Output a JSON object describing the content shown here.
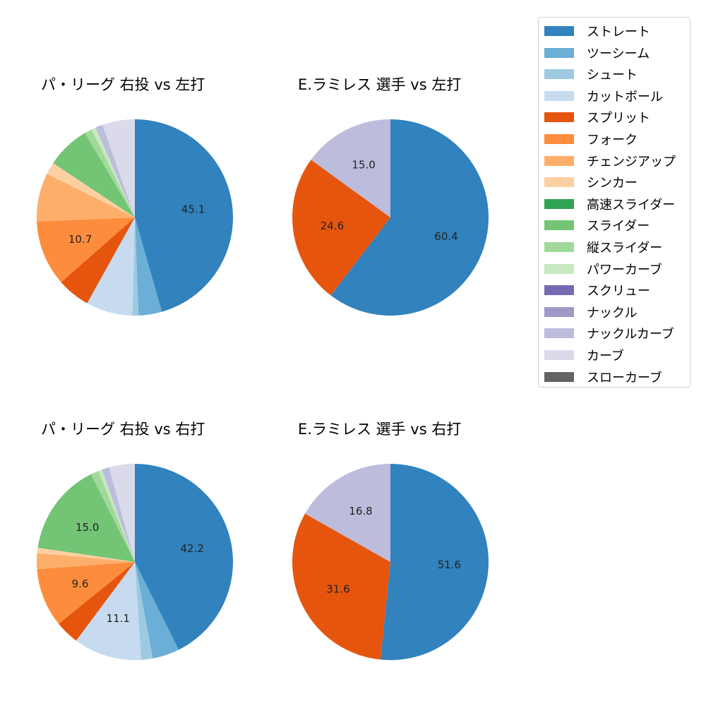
{
  "chart_data": [
    {
      "type": "pie",
      "title": "パ・リーグ 右投 vs 左打",
      "start_angle": 90,
      "direction": "clockwise",
      "slices": [
        {
          "label": "ストレート",
          "value": 45.1,
          "color": "#3182bd",
          "show_label": true
        },
        {
          "label": "ツーシーム",
          "value": 3.8,
          "color": "#6baed6",
          "show_label": false
        },
        {
          "label": "シュート",
          "value": 1.0,
          "color": "#9ecae1",
          "show_label": false
        },
        {
          "label": "カットボール",
          "value": 7.6,
          "color": "#c6dbef",
          "show_label": false
        },
        {
          "label": "スプリット",
          "value": 5.4,
          "color": "#e6550d",
          "show_label": false
        },
        {
          "label": "フォーク",
          "value": 10.7,
          "color": "#fd8d3c",
          "show_label": true
        },
        {
          "label": "チェンジアップ",
          "value": 7.9,
          "color": "#fdae6b",
          "show_label": false
        },
        {
          "label": "シンカー",
          "value": 2.0,
          "color": "#fdd0a2",
          "show_label": false
        },
        {
          "label": "スライダー",
          "value": 7.1,
          "color": "#74c476",
          "show_label": false
        },
        {
          "label": "縦スライダー",
          "value": 1.2,
          "color": "#a1d99b",
          "show_label": false
        },
        {
          "label": "パワーカーブ",
          "value": 0.7,
          "color": "#c7e9c0",
          "show_label": false
        },
        {
          "label": "ナックルカーブ",
          "value": 1.2,
          "color": "#bcbddc",
          "show_label": false
        },
        {
          "label": "カーブ",
          "value": 5.3,
          "color": "#dadaeb",
          "show_label": false
        }
      ]
    },
    {
      "type": "pie",
      "title": "E.ラミレス 選手 vs 左打",
      "start_angle": 90,
      "direction": "clockwise",
      "slices": [
        {
          "label": "ストレート",
          "value": 60.4,
          "color": "#3182bd",
          "show_label": true
        },
        {
          "label": "スプリット",
          "value": 24.6,
          "color": "#e6550d",
          "show_label": true
        },
        {
          "label": "ナックルカーブ",
          "value": 15.0,
          "color": "#bcbddc",
          "show_label": true
        }
      ]
    },
    {
      "type": "pie",
      "title": "パ・リーグ 右投 vs 右打",
      "start_angle": 90,
      "direction": "clockwise",
      "slices": [
        {
          "label": "ストレート",
          "value": 42.2,
          "color": "#3182bd",
          "show_label": true
        },
        {
          "label": "ツーシーム",
          "value": 4.4,
          "color": "#6baed6",
          "show_label": false
        },
        {
          "label": "シュート",
          "value": 1.9,
          "color": "#9ecae1",
          "show_label": false
        },
        {
          "label": "カットボール",
          "value": 11.1,
          "color": "#c6dbef",
          "show_label": true
        },
        {
          "label": "スプリット",
          "value": 3.9,
          "color": "#e6550d",
          "show_label": false
        },
        {
          "label": "フォーク",
          "value": 9.6,
          "color": "#fd8d3c",
          "show_label": true
        },
        {
          "label": "チェンジアップ",
          "value": 2.6,
          "color": "#fdae6b",
          "show_label": false
        },
        {
          "label": "シンカー",
          "value": 0.9,
          "color": "#fdd0a2",
          "show_label": false
        },
        {
          "label": "高速スライダー",
          "value": 0.1,
          "color": "#31a354",
          "show_label": false
        },
        {
          "label": "スライダー",
          "value": 15.0,
          "color": "#74c476",
          "show_label": true
        },
        {
          "label": "縦スライダー",
          "value": 1.3,
          "color": "#a1d99b",
          "show_label": false
        },
        {
          "label": "パワーカーブ",
          "value": 0.6,
          "color": "#c7e9c0",
          "show_label": false
        },
        {
          "label": "ナックルカーブ",
          "value": 1.2,
          "color": "#bcbddc",
          "show_label": false
        },
        {
          "label": "カーブ",
          "value": 4.2,
          "color": "#dadaeb",
          "show_label": false
        }
      ]
    },
    {
      "type": "pie",
      "title": "E.ラミレス 選手 vs 右打",
      "start_angle": 90,
      "direction": "clockwise",
      "slices": [
        {
          "label": "ストレート",
          "value": 51.6,
          "color": "#3182bd",
          "show_label": true
        },
        {
          "label": "スプリット",
          "value": 31.6,
          "color": "#e6550d",
          "show_label": true
        },
        {
          "label": "ナックルカーブ",
          "value": 16.8,
          "color": "#bcbddc",
          "show_label": true
        }
      ]
    }
  ],
  "legend": {
    "items": [
      {
        "label": "ストレート",
        "color": "#3182bd"
      },
      {
        "label": "ツーシーム",
        "color": "#6baed6"
      },
      {
        "label": "シュート",
        "color": "#9ecae1"
      },
      {
        "label": "カットボール",
        "color": "#c6dbef"
      },
      {
        "label": "スプリット",
        "color": "#e6550d"
      },
      {
        "label": "フォーク",
        "color": "#fd8d3c"
      },
      {
        "label": "チェンジアップ",
        "color": "#fdae6b"
      },
      {
        "label": "シンカー",
        "color": "#fdd0a2"
      },
      {
        "label": "高速スライダー",
        "color": "#31a354"
      },
      {
        "label": "スライダー",
        "color": "#74c476"
      },
      {
        "label": "縦スライダー",
        "color": "#a1d99b"
      },
      {
        "label": "パワーカーブ",
        "color": "#c7e9c0"
      },
      {
        "label": "スクリュー",
        "color": "#756bb1"
      },
      {
        "label": "ナックル",
        "color": "#9e9ac8"
      },
      {
        "label": "ナックルカーブ",
        "color": "#bcbddc"
      },
      {
        "label": "カーブ",
        "color": "#dadaeb"
      },
      {
        "label": "スローカーブ",
        "color": "#636363"
      }
    ]
  }
}
